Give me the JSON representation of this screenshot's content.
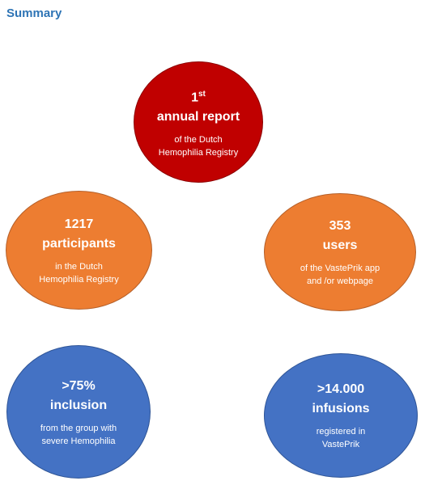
{
  "title": "Summary",
  "report": {
    "number": "1",
    "ordinal_suffix": "st",
    "headline": "annual report",
    "line1": "of the Dutch",
    "line2": "Hemophilia Registry",
    "color": "#c00000"
  },
  "participants": {
    "value": "1217",
    "headline": "participants",
    "line1": "in the Dutch",
    "line2": "Hemophilia Registry",
    "color": "#ed7d31"
  },
  "users": {
    "value": "353",
    "headline": "users",
    "line1": "of the VastePrik app",
    "line2": "and /or webpage",
    "color": "#ed7d31"
  },
  "inclusion": {
    "value": ">75%",
    "headline": "inclusion",
    "line1": "from the group with",
    "line2": "severe Hemophilia",
    "color": "#4472c4"
  },
  "infusions": {
    "value": ">14.000",
    "headline": "infusions",
    "line1": "registered in",
    "line2": "VastePrik",
    "color": "#4472c4"
  }
}
